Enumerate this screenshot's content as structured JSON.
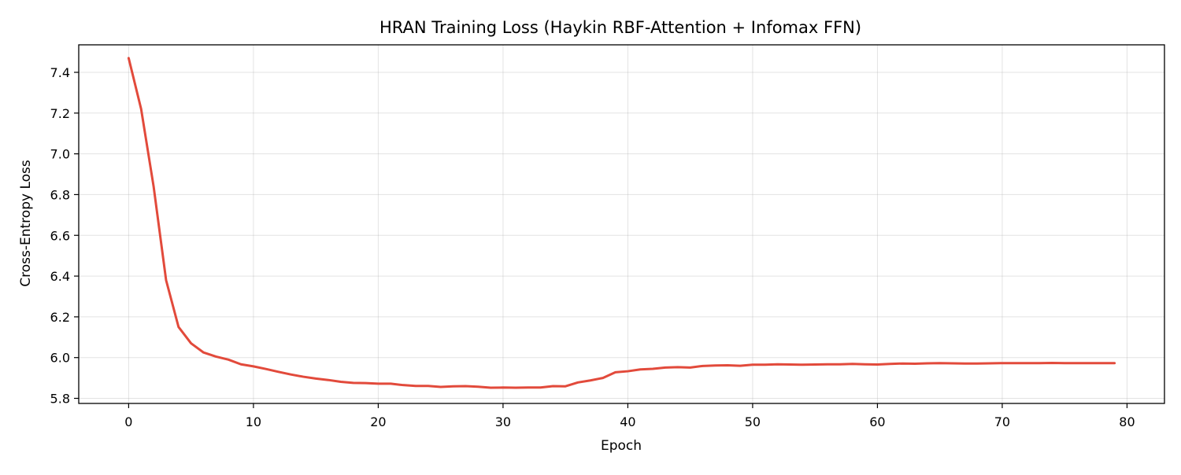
{
  "chart_data": {
    "type": "line",
    "title": "HRAN Training Loss (Haykin RBF-Attention + Infomax FFN)",
    "xlabel": "Epoch",
    "ylabel": "Cross-Entropy Loss",
    "xlim": [
      -4,
      83
    ],
    "ylim": [
      5.775,
      7.535
    ],
    "xticks": [
      0,
      10,
      20,
      30,
      40,
      50,
      60,
      70,
      80
    ],
    "yticks": [
      5.8,
      6.0,
      6.2,
      6.4,
      6.6,
      6.8,
      7.0,
      7.2,
      7.4
    ],
    "ytick_labels": [
      "5.8",
      "6.0",
      "6.2",
      "6.4",
      "6.6",
      "6.8",
      "7.0",
      "7.2",
      "7.4"
    ],
    "grid": true,
    "series": [
      {
        "color": "#e24a3b",
        "x": [
          0,
          1,
          2,
          3,
          4,
          5,
          6,
          7,
          8,
          9,
          10,
          11,
          12,
          13,
          14,
          15,
          16,
          17,
          18,
          19,
          20,
          21,
          22,
          23,
          24,
          25,
          26,
          27,
          28,
          29,
          30,
          31,
          32,
          33,
          34,
          35,
          36,
          37,
          38,
          39,
          40,
          41,
          42,
          43,
          44,
          45,
          46,
          47,
          48,
          49,
          50,
          51,
          52,
          53,
          54,
          55,
          56,
          57,
          58,
          59,
          60,
          61,
          62,
          63,
          64,
          65,
          66,
          67,
          68,
          69,
          70,
          71,
          72,
          73,
          74,
          75,
          76,
          77,
          78,
          79
        ],
        "y": [
          7.47,
          7.22,
          6.84,
          6.38,
          6.15,
          6.07,
          6.025,
          6.005,
          5.99,
          5.967,
          5.957,
          5.944,
          5.93,
          5.917,
          5.906,
          5.897,
          5.89,
          5.881,
          5.876,
          5.875,
          5.872,
          5.872,
          5.865,
          5.861,
          5.861,
          5.856,
          5.859,
          5.86,
          5.857,
          5.852,
          5.853,
          5.852,
          5.853,
          5.853,
          5.86,
          5.859,
          5.878,
          5.888,
          5.9,
          5.928,
          5.933,
          5.942,
          5.945,
          5.951,
          5.953,
          5.951,
          5.959,
          5.961,
          5.962,
          5.96,
          5.965,
          5.965,
          5.967,
          5.966,
          5.965,
          5.966,
          5.967,
          5.967,
          5.969,
          5.967,
          5.966,
          5.969,
          5.971,
          5.97,
          5.972,
          5.973,
          5.972,
          5.971,
          5.971,
          5.972,
          5.973,
          5.973,
          5.973,
          5.973,
          5.974,
          5.973,
          5.973,
          5.973,
          5.973,
          5.973
        ]
      }
    ]
  }
}
